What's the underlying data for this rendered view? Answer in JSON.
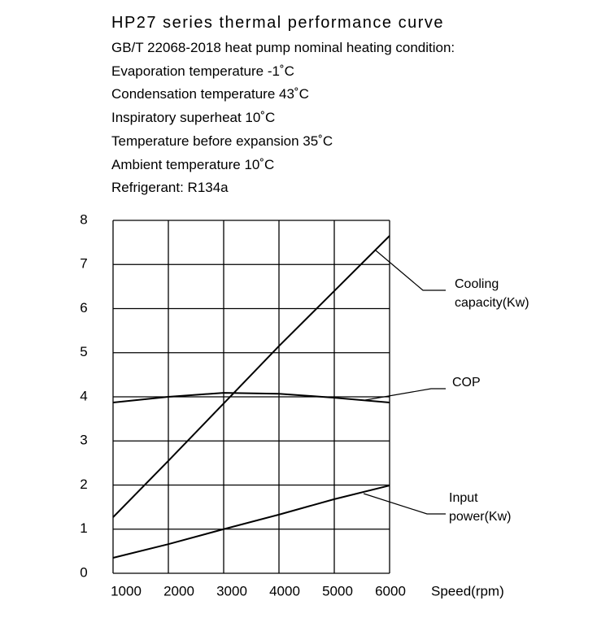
{
  "chart_data": {
    "type": "line",
    "title": "HP27 series thermal performance curve",
    "conditions": [
      "GB/T 22068-2018 heat pump nominal heating condition:",
      "Evaporation temperature -1˚C",
      "Condensation  temperature 43˚C",
      "Inspiratory superheat 10˚C",
      "Temperature before expansion 35˚C",
      "Ambient  temperature 10˚C",
      "Refrigerant: R134a"
    ],
    "x_label": "Speed(rpm)",
    "x": [
      1000,
      2000,
      3000,
      4000,
      5000,
      6000
    ],
    "xlim": [
      1000,
      6000
    ],
    "xticks": [
      1000,
      2000,
      3000,
      4000,
      5000,
      6000
    ],
    "ylim": [
      0,
      8
    ],
    "yticks": [
      0,
      1,
      2,
      3,
      4,
      5,
      6,
      7,
      8
    ],
    "grid": true,
    "series": [
      {
        "name": "Cooling capacity(Kw)",
        "color": "#000000",
        "values": [
          1.27,
          2.55,
          3.85,
          5.15,
          6.4,
          7.65
        ]
      },
      {
        "name": "COP",
        "color": "#000000",
        "values": [
          3.87,
          4.0,
          4.09,
          4.07,
          3.98,
          3.87
        ]
      },
      {
        "name": "Input power(Kw)",
        "color": "#000000",
        "values": [
          0.35,
          0.66,
          1.0,
          1.33,
          1.68,
          1.99
        ]
      }
    ]
  }
}
